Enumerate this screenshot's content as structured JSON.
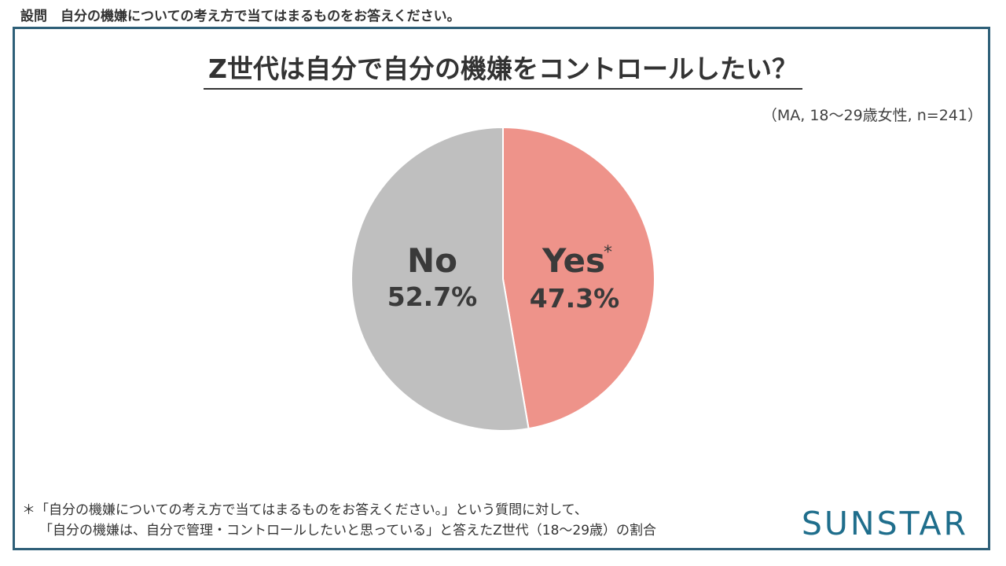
{
  "question": "設問　自分の機嫌についての考え方で当てはまるものをお答えください。",
  "title": "Z世代は自分で自分の機嫌をコントロールしたい？",
  "sample_note": "（MA, 18～29歳女性, n=241）",
  "footnote": {
    "line1": "＊「自分の機嫌についての考え方で当てはまるものをお答えください。」という質問に対して、",
    "line2": "「自分の機嫌は、自分で管理・コントロールしたいと思っている」と答えたZ世代（18～29歳）の割合"
  },
  "logo": "SUNSTAR",
  "colors": {
    "frame": "#2e5f78",
    "yes": "#ee938a",
    "no": "#bfbfbf",
    "logo": "#1f6e8c"
  },
  "chart_data": {
    "type": "pie",
    "title": "Z世代は自分で自分の機嫌をコントロールしたい？",
    "start": "12 o'clock",
    "direction": "clockwise",
    "slices": [
      {
        "name": "Yes",
        "marker": "*",
        "value": 47.3,
        "label": "47.3%",
        "color": "#ee938a"
      },
      {
        "name": "No",
        "marker": "",
        "value": 52.7,
        "label": "52.7%",
        "color": "#bfbfbf"
      }
    ]
  }
}
